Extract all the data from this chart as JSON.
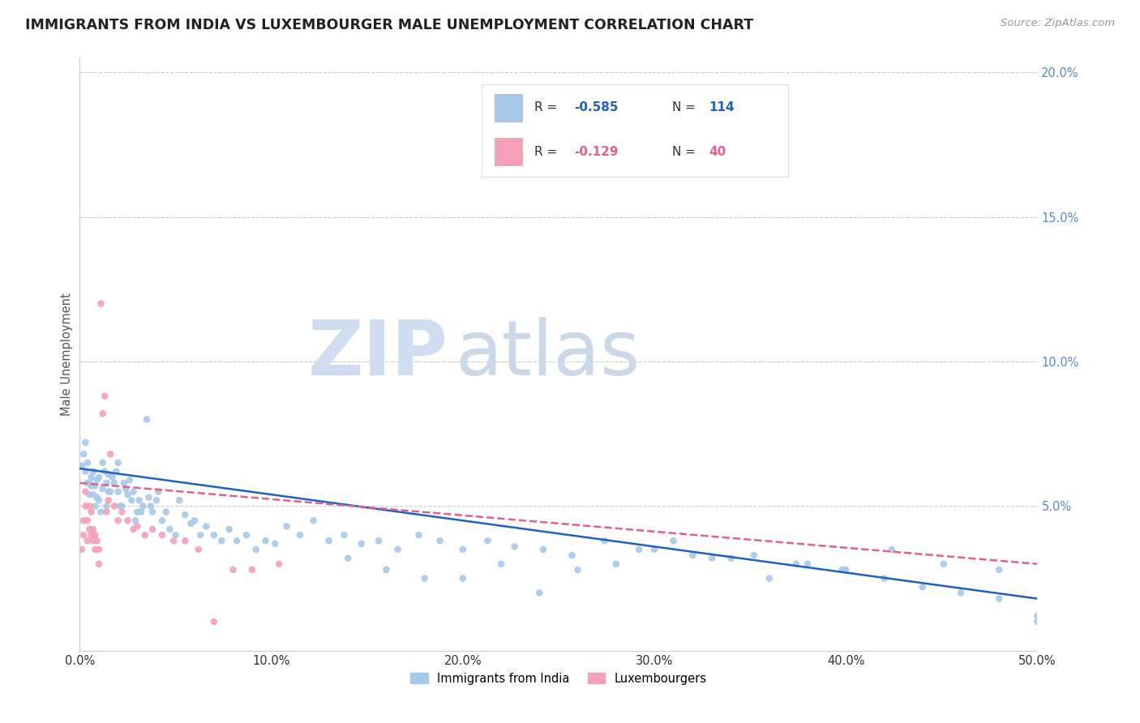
{
  "title": "IMMIGRANTS FROM INDIA VS LUXEMBOURGER MALE UNEMPLOYMENT CORRELATION CHART",
  "source_text": "Source: ZipAtlas.com",
  "ylabel": "Male Unemployment",
  "xlim": [
    0.0,
    0.5
  ],
  "ylim": [
    0.0,
    0.205
  ],
  "xtick_labels": [
    "0.0%",
    "",
    "10.0%",
    "",
    "20.0%",
    "",
    "30.0%",
    "",
    "40.0%",
    "",
    "50.0%"
  ],
  "xtick_vals": [
    0.0,
    0.05,
    0.1,
    0.15,
    0.2,
    0.25,
    0.3,
    0.35,
    0.4,
    0.45,
    0.5
  ],
  "ytick_vals": [
    0.0,
    0.05,
    0.1,
    0.15,
    0.2
  ],
  "ytick_labels": [
    "",
    "5.0%",
    "10.0%",
    "15.0%",
    "20.0%"
  ],
  "legend_r1_label": "R = ",
  "legend_r1_val": "-0.585",
  "legend_n1_label": "N = ",
  "legend_n1_val": "114",
  "legend_r2_label": "R = ",
  "legend_r2_val": "-0.129",
  "legend_n2_label": "N = ",
  "legend_n2_val": "40",
  "color_blue": "#a8c8e8",
  "color_pink": "#f4a0b8",
  "color_blue_line": "#2060c0",
  "color_pink_line": "#e06090",
  "color_watermark_zip": "#d8e4f0",
  "color_watermark_atlas": "#d8e0e8",
  "background_color": "#ffffff",
  "grid_color": "#cccccc",
  "title_color": "#222222",
  "axis_label_color": "#555555",
  "right_tick_color": "#5588dd",
  "scatter_blue_x": [
    0.001,
    0.002,
    0.003,
    0.003,
    0.004,
    0.004,
    0.005,
    0.005,
    0.006,
    0.006,
    0.007,
    0.007,
    0.008,
    0.008,
    0.009,
    0.009,
    0.01,
    0.01,
    0.011,
    0.012,
    0.012,
    0.013,
    0.014,
    0.014,
    0.015,
    0.015,
    0.016,
    0.017,
    0.018,
    0.019,
    0.02,
    0.02,
    0.021,
    0.022,
    0.023,
    0.024,
    0.025,
    0.026,
    0.027,
    0.028,
    0.029,
    0.03,
    0.031,
    0.032,
    0.033,
    0.035,
    0.036,
    0.037,
    0.038,
    0.04,
    0.041,
    0.043,
    0.045,
    0.047,
    0.05,
    0.052,
    0.055,
    0.058,
    0.06,
    0.063,
    0.066,
    0.07,
    0.074,
    0.078,
    0.082,
    0.087,
    0.092,
    0.097,
    0.102,
    0.108,
    0.115,
    0.122,
    0.13,
    0.138,
    0.147,
    0.156,
    0.166,
    0.177,
    0.188,
    0.2,
    0.213,
    0.227,
    0.242,
    0.257,
    0.274,
    0.292,
    0.31,
    0.33,
    0.352,
    0.374,
    0.398,
    0.424,
    0.451,
    0.48,
    0.5,
    0.5,
    0.48,
    0.46,
    0.44,
    0.42,
    0.4,
    0.38,
    0.36,
    0.34,
    0.32,
    0.3,
    0.28,
    0.26,
    0.24,
    0.22,
    0.2,
    0.18,
    0.16,
    0.14
  ],
  "scatter_blue_y": [
    0.064,
    0.068,
    0.062,
    0.072,
    0.058,
    0.065,
    0.058,
    0.054,
    0.057,
    0.06,
    0.054,
    0.062,
    0.057,
    0.05,
    0.053,
    0.059,
    0.052,
    0.06,
    0.048,
    0.065,
    0.056,
    0.062,
    0.058,
    0.05,
    0.061,
    0.055,
    0.055,
    0.06,
    0.058,
    0.062,
    0.055,
    0.065,
    0.05,
    0.05,
    0.058,
    0.056,
    0.054,
    0.059,
    0.052,
    0.055,
    0.045,
    0.048,
    0.052,
    0.048,
    0.05,
    0.08,
    0.053,
    0.05,
    0.048,
    0.052,
    0.055,
    0.045,
    0.048,
    0.042,
    0.04,
    0.052,
    0.047,
    0.044,
    0.045,
    0.04,
    0.043,
    0.04,
    0.038,
    0.042,
    0.038,
    0.04,
    0.035,
    0.038,
    0.037,
    0.043,
    0.04,
    0.045,
    0.038,
    0.04,
    0.037,
    0.038,
    0.035,
    0.04,
    0.038,
    0.035,
    0.038,
    0.036,
    0.035,
    0.033,
    0.038,
    0.035,
    0.038,
    0.032,
    0.033,
    0.03,
    0.028,
    0.035,
    0.03,
    0.028,
    0.01,
    0.012,
    0.018,
    0.02,
    0.022,
    0.025,
    0.028,
    0.03,
    0.025,
    0.032,
    0.033,
    0.035,
    0.03,
    0.028,
    0.02,
    0.03,
    0.025,
    0.025,
    0.028,
    0.032
  ],
  "scatter_pink_x": [
    0.001,
    0.002,
    0.002,
    0.003,
    0.003,
    0.004,
    0.004,
    0.005,
    0.005,
    0.006,
    0.006,
    0.007,
    0.007,
    0.008,
    0.008,
    0.009,
    0.01,
    0.01,
    0.011,
    0.012,
    0.013,
    0.014,
    0.015,
    0.016,
    0.018,
    0.02,
    0.022,
    0.025,
    0.028,
    0.03,
    0.034,
    0.038,
    0.043,
    0.049,
    0.055,
    0.062,
    0.07,
    0.08,
    0.09,
    0.104
  ],
  "scatter_pink_y": [
    0.035,
    0.04,
    0.045,
    0.05,
    0.055,
    0.038,
    0.045,
    0.042,
    0.05,
    0.04,
    0.048,
    0.038,
    0.042,
    0.035,
    0.04,
    0.038,
    0.035,
    0.03,
    0.12,
    0.082,
    0.088,
    0.048,
    0.052,
    0.068,
    0.05,
    0.045,
    0.048,
    0.045,
    0.042,
    0.043,
    0.04,
    0.042,
    0.04,
    0.038,
    0.038,
    0.035,
    0.01,
    0.028,
    0.028,
    0.03
  ],
  "trend_blue_x0": 0.0,
  "trend_blue_x1": 0.5,
  "trend_blue_y0": 0.063,
  "trend_blue_y1": 0.018,
  "trend_pink_x0": 0.0,
  "trend_pink_x1": 0.5,
  "trend_pink_y0": 0.058,
  "trend_pink_y1": 0.03
}
